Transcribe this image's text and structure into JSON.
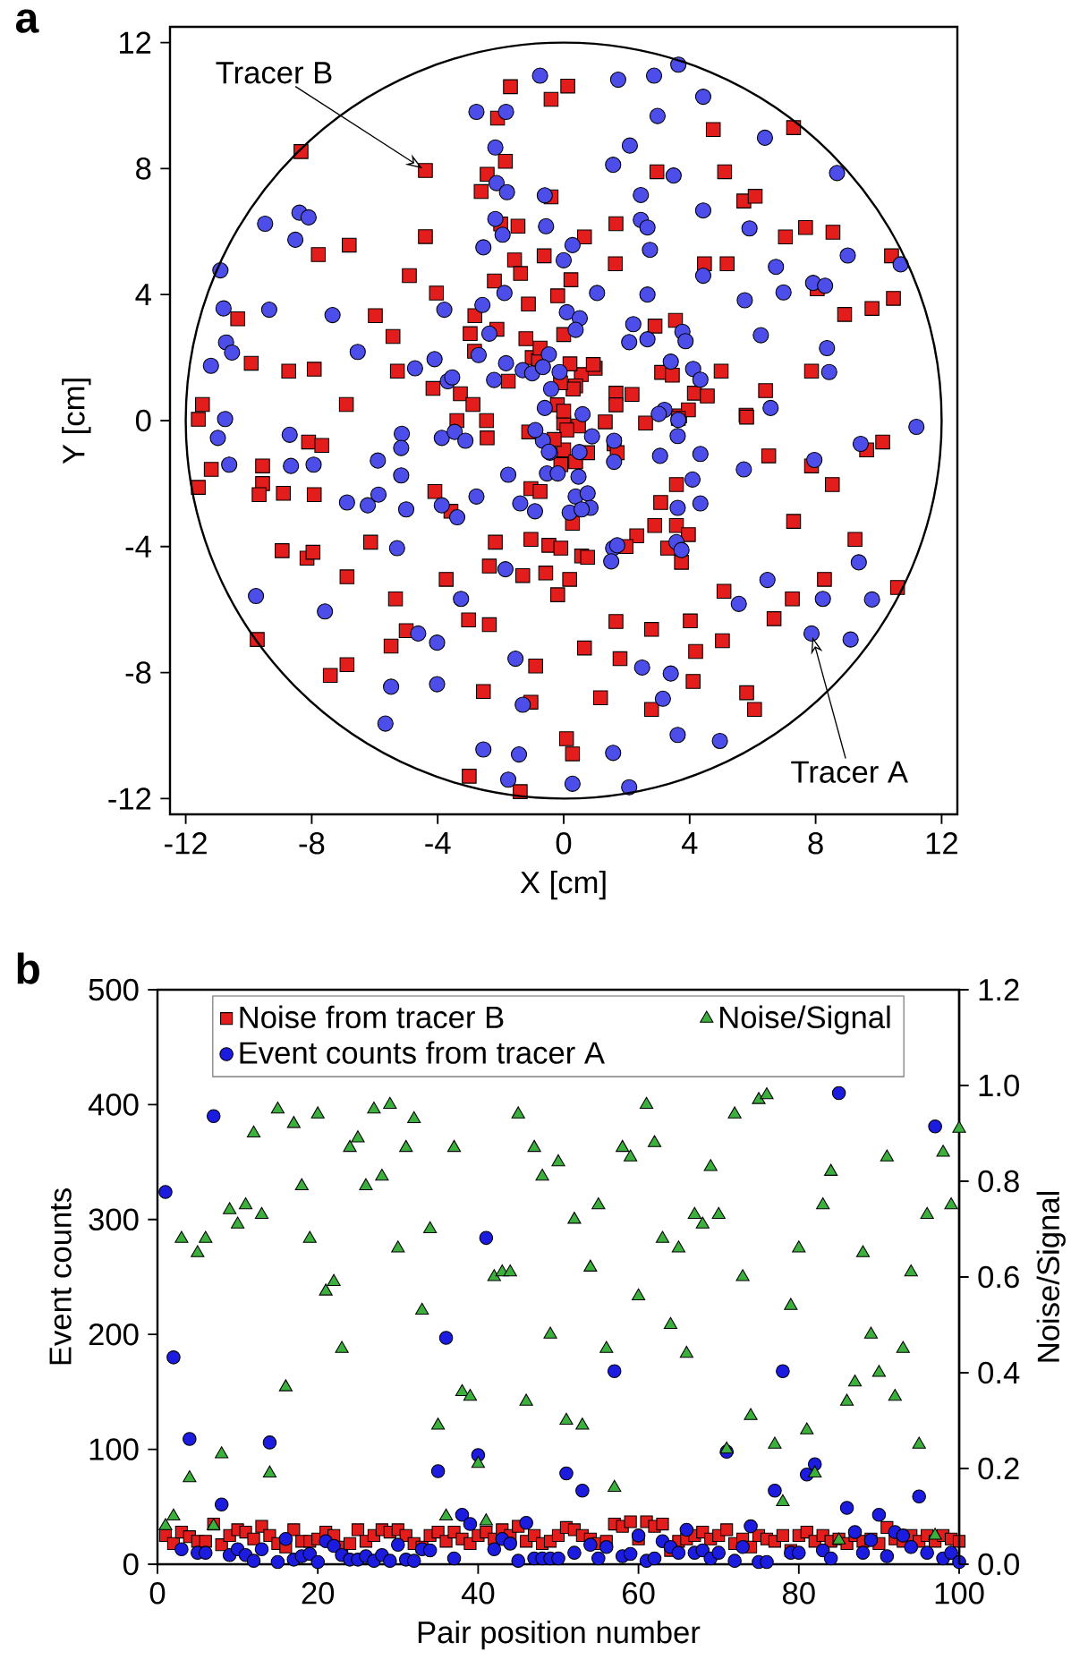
{
  "chart_data": [
    {
      "type": "scatter",
      "title": "a",
      "xlabel": "X [cm]",
      "ylabel": "Y [cm]",
      "xlim": [
        -12.5,
        12.5
      ],
      "ylim": [
        -12.5,
        12.5
      ],
      "xticks": [
        -12,
        -8,
        -4,
        0,
        4,
        8,
        12
      ],
      "yticks": [
        -12,
        -8,
        -4,
        0,
        4,
        8,
        12
      ],
      "series": [
        {
          "color": "#e31c1c",
          "marker": "square",
          "x": [
            -8.34,
            -4.39,
            -4.39,
            -7.79,
            -6.81,
            -4.9,
            -4.04,
            -5.98,
            -10.35,
            -5.42,
            -9.92,
            -8.73,
            -7.92,
            -5.28,
            -4.15,
            -3.28,
            -11.47,
            -11.6,
            -6.9,
            -2.83,
            -2.97,
            -2.82,
            -2.2,
            -2.12,
            -1.45,
            -2.0,
            -2.43,
            -2.62,
            -1.85,
            -2.1,
            -1.69,
            -0.4,
            -1.56,
            -1.37,
            -1.12,
            -1.2,
            -1.0,
            -0.8,
            -2.88,
            -1.76,
            -0.4,
            0.13,
            4.75,
            7.3,
            2.96,
            5.11,
            5.72,
            6.08,
            1.66,
            0.66,
            -0.62,
            1.64,
            4.47,
            5.19,
            7.04,
            7.68,
            8.55,
            8.05,
            10.41,
            8.92,
            9.79,
            10.47,
            0.23,
            -0.19,
            0.0,
            2.9,
            3.55,
            1.0,
            3.11,
            3.45,
            5.0,
            7.87,
            6.41,
            5.79,
            4.15,
            4.56,
            1.66,
            1.66,
            2.17,
            3.68,
            3.96,
            2.6,
            1.32,
            0.56,
            0.94,
            0.38,
            -0.75,
            -11.6,
            -11.19,
            -9.56,
            -9.56,
            -9.67,
            -8.9,
            -8.1,
            -7.68,
            -7.92,
            -8.94,
            -8.15,
            -7.96,
            -9.73,
            -6.88,
            -6.13,
            -7.41,
            -6.88,
            -5.34,
            -5.0,
            -5.48,
            -4.09,
            -3.58,
            -3.73,
            -3.02,
            -2.36,
            -2.17,
            -2.36,
            -2.55,
            -3.0,
            -1.38,
            -1.04,
            -0.89,
            -1.3,
            -0.57,
            -1.04,
            -0.47,
            -1.04,
            -0.75,
            -3.39,
            -2.45,
            -2.43,
            -1.11,
            3.64,
            5.81,
            6.51,
            7.87,
            8.53,
            9.62,
            10.13,
            7.3,
            9.25,
            10.6,
            8.28,
            7.26,
            6.68,
            5.09,
            5.04,
            1.66,
            2.79,
            4.02,
            0.66,
            1.79,
            4.19,
            4.11,
            1.17,
            2.79,
            5.81,
            6.06,
            0.09,
            0.28,
            3.08,
            2.89,
            3.58,
            3.58,
            3.96,
            3.3,
            3.74,
            2.32,
            1.98,
            -0.09,
            0.57,
            0.76,
            0.19,
            -0.19,
            0.28,
            0,
            0.38,
            -0.09,
            0.76,
            1.6,
            1.7,
            0,
            0.47,
            -0.2,
            0.1,
            -0.3,
            0.3,
            0.2,
            -0.1,
            0.0
          ],
          "values": [
            8.54,
            7.94,
            5.84,
            5.27,
            5.57,
            4.6,
            4.05,
            3.33,
            3.23,
            2.67,
            1.82,
            1.57,
            1.63,
            1.57,
            1.02,
            0.85,
            0.51,
            0.04,
            0.51,
            2.2,
            2.76,
            3.33,
            4.43,
            2.9,
            6.17,
            6.24,
            7.82,
            7.27,
            8.23,
            9.6,
            10.6,
            10.2,
            5.1,
            4.67,
            3.7,
            2.6,
            2.0,
            1.9,
            0.51,
            1.25,
            7.1,
            10.62,
            9.24,
            9.3,
            7.9,
            7.9,
            6.97,
            7.12,
            6.25,
            5.83,
            5.23,
            4.98,
            4.98,
            4.98,
            5.83,
            6.13,
            5.98,
            4.18,
            5.23,
            3.37,
            3.56,
            3.88,
            4.47,
            3.96,
            2.73,
            3.0,
            3.18,
            1.66,
            1.53,
            1.44,
            1.57,
            1.57,
            0.95,
            0.17,
            0.87,
            0.78,
            0.87,
            0.5,
            0.83,
            0.15,
            0.34,
            -0.08,
            -0.04,
            1.46,
            1.78,
            1.1,
            2.3,
            -2.12,
            -1.55,
            -1.44,
            -2.0,
            -2.35,
            -2.31,
            -0.68,
            -0.79,
            -2.35,
            -4.13,
            -4.37,
            -4.18,
            -6.95,
            -4.96,
            -3.86,
            -8.09,
            -7.75,
            -5.66,
            -6.67,
            -7.16,
            -2.25,
            -2.88,
            -5.04,
            -6.33,
            -6.48,
            -3.86,
            -4.62,
            -8.6,
            -11.29,
            -11.78,
            -8.94,
            -7.79,
            -4.92,
            -4.84,
            -3.77,
            -3.96,
            -2.16,
            -2.25,
            0.0,
            0.0,
            -0.55,
            -0.36,
            0.07,
            0.11,
            -1.12,
            -1.44,
            -2.03,
            -0.93,
            -0.68,
            -3.2,
            -3.77,
            -5.3,
            -5.04,
            -5.66,
            -6.29,
            -5.42,
            -6.99,
            -6.38,
            -6.63,
            -6.36,
            -7.22,
            -7.56,
            -7.33,
            -8.28,
            -8.8,
            -9.17,
            -8.64,
            -9.17,
            -10.1,
            -10.58,
            -2.6,
            -3.33,
            -2.03,
            -3.33,
            -3.62,
            -4.05,
            -4.5,
            -3.66,
            -4.0,
            -4.05,
            -4.3,
            -4.34,
            -5.04,
            -5.53,
            -3.26,
            -0.93,
            -1.31,
            -1.4,
            -1.02,
            -0.74,
            -1.02,
            -0.08,
            -0.17,
            0.5,
            -0.3,
            -0.6,
            1.0,
            1.8,
            1.2,
            0.3
          ]
        },
        {
          "color": "#4d4dea",
          "marker": "circle",
          "x": [
            -0.75,
            -2.77,
            -1.83,
            -2.17,
            -2.13,
            -1.8,
            -2.17,
            -1.94,
            -2.55,
            -0.6,
            -0.56,
            -1.88,
            -2.58,
            -2.36,
            -2.7,
            -1.83,
            -2.21,
            -1.3,
            -1.0,
            -9.48,
            -8.39,
            -8.1,
            -8.52,
            -10.9,
            -10.8,
            -9.35,
            -10.72,
            -10.53,
            -11.2,
            -7.34,
            -6.54,
            -4.72,
            -4.1,
            -3.79,
            -3.68,
            -3.54,
            -10.75,
            1.73,
            2.87,
            3.64,
            4.43,
            2.98,
            2.1,
            1.57,
            6.39,
            8.68,
            3.49,
            2.45,
            4.43,
            2.45,
            2.66,
            2.74,
            5.9,
            0.28,
            0,
            4.43,
            6.74,
            7.92,
            8.3,
            9.02,
            10.7,
            1.06,
            2.66,
            5.75,
            6.98,
            0.1,
            0.51,
            0.38,
            2.21,
            2.08,
            2.66,
            3.77,
            3.87,
            6.26,
            8.36,
            8.43,
            3.4,
            4.11,
            4.34,
            3.2,
            3.64,
            3.02,
            6.57,
            11.2,
            -0.13,
            -0.47,
            -0.66,
            -10.98,
            -10.62,
            -8.7,
            -8.66,
            -7.94,
            -6.88,
            -6.22,
            -5.88,
            -5.9,
            -5.14,
            -5.16,
            -5.16,
            -5.0,
            -5.29,
            -9.77,
            -7.58,
            -5.66,
            -4.62,
            -4.02,
            -5.48,
            -4.02,
            -3.87,
            -3.38,
            -2.77,
            -3.26,
            -1.85,
            -1.53,
            -1.3,
            -2.55,
            -1.42,
            -1.76,
            -3.87,
            -3.46,
            -3.12,
            -1.76,
            -1.38,
            -0.91,
            -0.43,
            -0.53,
            9.43,
            7.96,
            5.72,
            4.34,
            3.06,
            3.62,
            1.6,
            1.6,
            4.09,
            4.34,
            3.62,
            3.58,
            3.74,
            1.57,
            1.51,
            1.7,
            0.47,
            0.38,
            0.76,
            0.85,
            0.19,
            0.57,
            6.47,
            5.56,
            7.87,
            8.23,
            9.37,
            9.79,
            9.11,
            2.49,
            3.4,
            3.15,
            3.62,
            4.96,
            1.57,
            0.28,
            2.08,
            -0.66,
            -0.19,
            -0.47,
            -0.6,
            0.6,
            -0.9,
            0.9,
            -0.4,
            0.5
          ],
          "values": [
            10.95,
            9.8,
            9.8,
            8.67,
            7.54,
            7.25,
            6.4,
            5.9,
            5.5,
            7.15,
            6.17,
            4.05,
            3.67,
            2.76,
            2.08,
            1.82,
            1.29,
            1.6,
            1.5,
            6.25,
            6.6,
            6.45,
            5.74,
            4.77,
            3.56,
            3.52,
            2.48,
            2.16,
            1.74,
            3.35,
            2.18,
            1.66,
            1.95,
            3.52,
            1.25,
            1.37,
            0.05,
            10.82,
            10.95,
            11.3,
            10.28,
            9.67,
            8.73,
            8.12,
            8.98,
            7.86,
            7.78,
            7.16,
            6.67,
            6.37,
            6.13,
            5.42,
            6.1,
            5.57,
            5.09,
            4.6,
            4.88,
            4.37,
            4.28,
            5.24,
            4.96,
            4.05,
            4.0,
            3.82,
            4.07,
            3.44,
            3.25,
            2.88,
            3.06,
            2.49,
            2.58,
            2.82,
            2.52,
            2.71,
            2.3,
            1.54,
            1.87,
            1.64,
            1.3,
            0.34,
            0.02,
            0.21,
            0.4,
            -0.2,
            1.54,
            2.1,
            1.7,
            -0.55,
            -1.4,
            -0.45,
            -1.44,
            -1.4,
            -2.6,
            -2.69,
            -2.35,
            -1.27,
            -0.42,
            -0.87,
            -1.74,
            -2.82,
            -4.05,
            -5.57,
            -6.06,
            -9.62,
            -6.76,
            -7.05,
            -8.45,
            -8.37,
            -2.69,
            -3.07,
            -2.41,
            -5.66,
            -4.72,
            -7.56,
            -9.02,
            -10.44,
            -10.6,
            -11.4,
            -0.55,
            -0.36,
            -0.64,
            -1.72,
            -2.63,
            -2.88,
            -1.02,
            -1.68,
            -0.74,
            -1.25,
            -1.55,
            -1.06,
            -1.12,
            -0.49,
            -0.64,
            -1.31,
            -1.87,
            -2.63,
            -2.77,
            -3.86,
            -4.11,
            -4.05,
            -4.47,
            -3.96,
            -1.78,
            -2.41,
            -2.31,
            -2.77,
            -2.92,
            -2.82,
            -5.06,
            -5.82,
            -6.76,
            -5.66,
            -4.5,
            -5.68,
            -6.95,
            -7.84,
            -8.03,
            -8.83,
            -9.98,
            -10.17,
            -10.55,
            -11.53,
            -11.64,
            -0.64,
            -1.68,
            -0.99,
            0.4,
            0.2,
            -0.3,
            -0.5,
            1.0,
            -1.0
          ]
        }
      ],
      "annotations": [
        {
          "text": "Tracer B",
          "x": -4.39,
          "y": 7.94
        },
        {
          "text": "Tracer A",
          "x": 7.87,
          "y": -6.76
        }
      ]
    },
    {
      "type": "scatter",
      "title": "b",
      "xlabel": "Pair position number",
      "ylabel": "Event counts",
      "y2label": "Noise/Signal",
      "xlim": [
        0,
        100
      ],
      "ylim": [
        0,
        500
      ],
      "y2lim": [
        0,
        1.2
      ],
      "xticks": [
        0,
        20,
        40,
        60,
        80,
        100
      ],
      "yticks": [
        0,
        100,
        200,
        300,
        400,
        500
      ],
      "y2ticks": [
        {
          "value": 0,
          "label": "0.0"
        },
        {
          "value": 0.2,
          "label": "0.2"
        },
        {
          "value": 0.4,
          "label": "0.4"
        },
        {
          "value": 0.6,
          "label": "0.6"
        },
        {
          "value": 0.8,
          "label": "0.8"
        },
        {
          "value": 1.0,
          "label": "1.0"
        },
        {
          "value": 1.2,
          "label": "1.2"
        }
      ],
      "legend": "top",
      "x": [
        1,
        2,
        3,
        4,
        5,
        6,
        7,
        8,
        9,
        10,
        11,
        12,
        13,
        14,
        15,
        16,
        17,
        18,
        19,
        20,
        21,
        22,
        23,
        24,
        25,
        26,
        27,
        28,
        29,
        30,
        31,
        32,
        33,
        34,
        35,
        36,
        37,
        38,
        39,
        40,
        41,
        42,
        43,
        44,
        45,
        46,
        47,
        48,
        49,
        50,
        51,
        52,
        53,
        54,
        55,
        56,
        57,
        58,
        59,
        60,
        61,
        62,
        63,
        64,
        65,
        66,
        67,
        68,
        69,
        70,
        71,
        72,
        73,
        74,
        75,
        76,
        77,
        78,
        79,
        80,
        81,
        82,
        83,
        84,
        85,
        86,
        87,
        88,
        89,
        90,
        91,
        92,
        93,
        94,
        95,
        96,
        97,
        98,
        99,
        100
      ],
      "series": [
        {
          "name": "Noise from tracer B",
          "color": "#e31c1c",
          "marker": "square",
          "values": [
            25,
            18,
            28,
            24,
            20,
            20,
            35,
            17,
            25,
            30,
            28,
            22,
            33,
            25,
            18,
            15,
            30,
            20,
            20,
            22,
            28,
            25,
            15,
            18,
            30,
            20,
            25,
            30,
            28,
            30,
            25,
            18,
            15,
            25,
            28,
            20,
            28,
            22,
            18,
            25,
            28,
            22,
            30,
            25,
            33,
            20,
            25,
            18,
            20,
            25,
            32,
            30,
            25,
            22,
            18,
            20,
            35,
            33,
            37,
            22,
            37,
            33,
            35,
            12,
            20,
            22,
            25,
            28,
            22,
            25,
            30,
            18,
            22,
            15,
            25,
            22,
            20,
            25,
            12,
            25,
            28,
            20,
            25,
            20,
            22,
            18,
            25,
            20,
            22,
            18,
            32,
            22,
            20,
            25,
            20,
            25,
            20,
            25,
            22,
            20
          ]
        },
        {
          "name": "Event counts from tracer A",
          "color": "#1c1ce0",
          "marker": "circle",
          "values": [
            324,
            180,
            13,
            109,
            10,
            10,
            390,
            52,
            8,
            13,
            8,
            3,
            13,
            106,
            2,
            22,
            4,
            7,
            9,
            2,
            20,
            16,
            8,
            4,
            4,
            7,
            3,
            8,
            3,
            17,
            4,
            3,
            13,
            12,
            81,
            197,
            5,
            43,
            35,
            95,
            284,
            13,
            22,
            18,
            3,
            36,
            5,
            5,
            5,
            5,
            79,
            10,
            64,
            17,
            5,
            15,
            168,
            7,
            9,
            25,
            3,
            5,
            20,
            15,
            10,
            30,
            10,
            12,
            5,
            10,
            98,
            3,
            15,
            33,
            2,
            2,
            64,
            168,
            10,
            10,
            78,
            87,
            12,
            5,
            410,
            49,
            28,
            10,
            21,
            43,
            7,
            28,
            25,
            15,
            59,
            10,
            381,
            5,
            10,
            2
          ]
        },
        {
          "name": "Noise/Signal",
          "color": "#3cb03c",
          "marker": "triangle",
          "axis": "y2",
          "values": [
            0.08,
            0.1,
            0.68,
            0.18,
            0.65,
            0.68,
            0.08,
            0.23,
            0.74,
            0.71,
            0.75,
            0.9,
            0.73,
            0.19,
            0.95,
            0.37,
            0.92,
            0.79,
            0.68,
            0.94,
            0.57,
            0.59,
            0.45,
            0.87,
            0.89,
            0.79,
            0.95,
            0.81,
            0.96,
            0.66,
            0.87,
            0.93,
            0.53,
            0.7,
            0.29,
            0.1,
            0.87,
            0.36,
            0.35,
            0.21,
            0.09,
            0.6,
            0.61,
            0.61,
            0.94,
            0.34,
            0.87,
            0.81,
            0.48,
            0.84,
            0.3,
            0.72,
            0.29,
            0.62,
            0.75,
            0.45,
            0.16,
            0.87,
            0.85,
            0.56,
            0.96,
            0.88,
            0.68,
            0.5,
            0.66,
            0.44,
            0.73,
            0.71,
            0.83,
            0.73,
            0.24,
            0.94,
            0.6,
            0.31,
            0.97,
            0.98,
            0.25,
            0.13,
            0.54,
            0.66,
            0.28,
            0.19,
            0.75,
            0.82,
            0.05,
            0.34,
            0.38,
            0.65,
            0.48,
            0.4,
            0.85,
            0.35,
            0.45,
            0.61,
            0.25,
            0.73,
            0.06,
            0.86,
            0.75,
            0.91
          ]
        }
      ]
    }
  ]
}
